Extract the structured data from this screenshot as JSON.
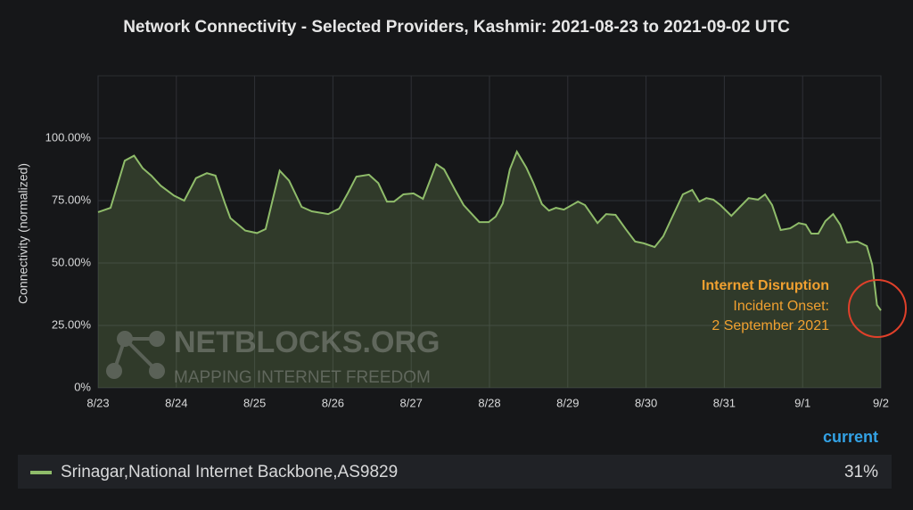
{
  "chart_data": {
    "type": "area",
    "title": "Network Connectivity - Selected Providers, Kashmir: 2021-08-23 to 2021-09-02 UTC",
    "y_label": "Connectivity (normalized)",
    "xlim": [
      0,
      10
    ],
    "ylim": [
      0,
      125
    ],
    "xticks": [
      {
        "value": 0,
        "label": "8/23"
      },
      {
        "value": 1,
        "label": "8/24"
      },
      {
        "value": 2,
        "label": "8/25"
      },
      {
        "value": 3,
        "label": "8/26"
      },
      {
        "value": 4,
        "label": "8/27"
      },
      {
        "value": 5,
        "label": "8/28"
      },
      {
        "value": 6,
        "label": "8/29"
      },
      {
        "value": 7,
        "label": "8/30"
      },
      {
        "value": 8,
        "label": "8/31"
      },
      {
        "value": 9,
        "label": "9/1"
      },
      {
        "value": 10,
        "label": "9/2"
      }
    ],
    "yticks": [
      {
        "value": 0,
        "label": "0%"
      },
      {
        "value": 25,
        "label": "25.00%"
      },
      {
        "value": 50,
        "label": "50.00%"
      },
      {
        "value": 75,
        "label": "75.00%"
      },
      {
        "value": 100,
        "label": "100.00%"
      }
    ],
    "grid": true,
    "series": [
      {
        "name": "Srinagar,National Internet Backbone,AS9829",
        "color": "#8fbc6a",
        "x": [
          0,
          0.16,
          0.34,
          0.46,
          0.57,
          0.68,
          0.8,
          0.97,
          1.1,
          1.25,
          1.39,
          1.5,
          1.62,
          1.69,
          1.88,
          2.03,
          2.14,
          2.32,
          2.44,
          2.6,
          2.73,
          2.94,
          3.08,
          3.19,
          3.3,
          3.46,
          3.58,
          3.69,
          3.78,
          3.9,
          4.03,
          4.15,
          4.32,
          4.42,
          4.56,
          4.67,
          4.87,
          4.99,
          5.08,
          5.17,
          5.26,
          5.35,
          5.47,
          5.56,
          5.67,
          5.76,
          5.85,
          5.95,
          6.13,
          6.22,
          6.38,
          6.49,
          6.61,
          6.74,
          6.86,
          6.97,
          7.11,
          7.22,
          7.31,
          7.47,
          7.59,
          7.68,
          7.77,
          7.86,
          7.95,
          8.09,
          8.2,
          8.31,
          8.43,
          8.52,
          8.61,
          8.72,
          8.84,
          8.95,
          9.04,
          9.11,
          9.2,
          9.29,
          9.39,
          9.48,
          9.57,
          9.7,
          9.82,
          9.89,
          9.95,
          10
        ],
        "values": [
          70.4,
          72.1,
          91,
          93,
          88,
          85,
          81,
          77,
          75,
          84,
          86,
          85,
          74,
          68,
          63,
          62,
          63.6,
          87,
          83,
          72.5,
          70.7,
          69.6,
          71.8,
          78,
          84.6,
          85.4,
          82,
          74.6,
          74.6,
          77.5,
          77.9,
          75.7,
          89.6,
          87.5,
          79.3,
          73.2,
          66.4,
          66.4,
          68.6,
          73.9,
          87.5,
          94.6,
          88.2,
          82.1,
          73.6,
          71,
          72.1,
          71.4,
          74.6,
          73.2,
          66,
          69.6,
          69.3,
          63.6,
          58.6,
          57.9,
          56.4,
          60.7,
          66.8,
          77.5,
          79.3,
          74.6,
          76,
          75.4,
          73.2,
          68.9,
          72.5,
          76,
          75.4,
          77.5,
          73.2,
          63.2,
          63.9,
          66,
          65.4,
          61.8,
          61.8,
          66.8,
          69.6,
          65.4,
          58.2,
          58.6,
          56.8,
          49.3,
          33.2,
          31
        ]
      }
    ],
    "annotation": [
      "Internet Disruption",
      "Incident Onset:",
      "2 September 2021"
    ],
    "watermark": [
      "NETBLOCKS.ORG",
      "MAPPING INTERNET FREEDOM"
    ],
    "legend": {
      "header": "current",
      "current": {
        "value": 31,
        "label": "31%"
      }
    }
  }
}
